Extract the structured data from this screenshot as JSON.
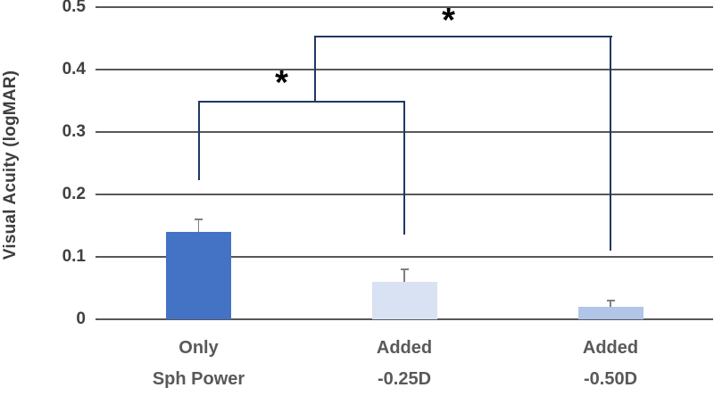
{
  "chart_data": {
    "type": "bar",
    "title": "",
    "xlabel": "",
    "ylabel": "Visual Acuity (logMAR)",
    "ylim": [
      0,
      0.5
    ],
    "yticks": [
      0,
      0.1,
      0.2,
      0.3,
      0.4,
      0.5
    ],
    "ytick_labels": [
      "0",
      "0.1",
      "0.2",
      "0.3",
      "0.4",
      "0.5"
    ],
    "grid": true,
    "legend": false,
    "categories": [
      {
        "line1": "Only",
        "line2": "Sph Power"
      },
      {
        "line1": "Added",
        "line2": "-0.25D"
      },
      {
        "line1": "Added",
        "line2": "-0.50D"
      }
    ],
    "values": [
      0.14,
      0.06,
      0.02
    ],
    "error_bars_upper": [
      0.02,
      0.02,
      0.01
    ],
    "bar_colors": [
      "#4472C4",
      "#D9E2F3",
      "#B1C5E7"
    ],
    "significance": [
      {
        "label": "*",
        "between": [
          "Only Sph Power",
          "Added -0.25D"
        ],
        "bracket_y": 0.35
      },
      {
        "label": "*",
        "between": [
          "Only Sph Power",
          "Added -0.50D"
        ],
        "bracket_y": 0.455
      }
    ],
    "colors": {
      "bracket": "#1F3864",
      "gridline": "#58585A",
      "error_bar": "#7F7F7F",
      "axis_text": "#404040",
      "category_text": "#595959"
    }
  }
}
